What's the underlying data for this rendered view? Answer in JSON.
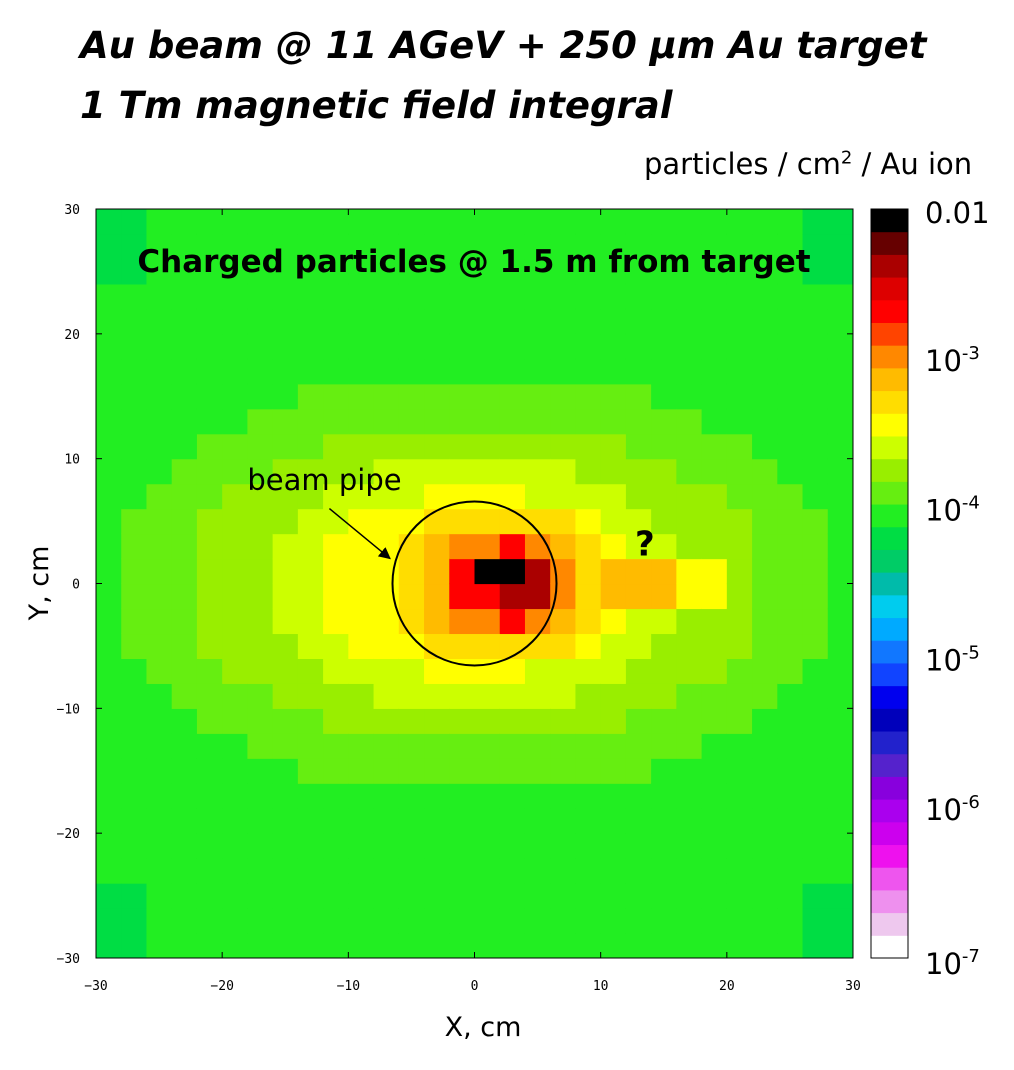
{
  "title_line1": "Au beam @ 11 AGeV + 250 µm Au target",
  "title_line2": "1 Tm magnetic field integral",
  "colorbar_units": {
    "prefix": "particles / cm",
    "power": "2",
    "suffix": " / Au ion"
  },
  "chart_data": {
    "type": "heatmap",
    "title": "Charged particles @ 1.5 m from target",
    "xlabel": "X, cm",
    "ylabel": "Y, cm",
    "xlim": [
      -30,
      30
    ],
    "ylim": [
      -30,
      30
    ],
    "x_ticks": [
      "-30",
      "-20",
      "-10",
      "0",
      "10",
      "20",
      "30"
    ],
    "y_ticks": [
      "30",
      "20",
      "10",
      "0",
      "-10",
      "-20",
      "-30"
    ],
    "colorbar": {
      "scale": "log",
      "range": [
        1e-07,
        0.01
      ],
      "labels": [
        {
          "base": "0.01",
          "exp": "",
          "value": 0.01
        },
        {
          "base": "10",
          "exp": "-3",
          "value": 0.001
        },
        {
          "base": "10",
          "exp": "-4",
          "value": 0.0001
        },
        {
          "base": "10",
          "exp": "-5",
          "value": 1e-05
        },
        {
          "base": "10",
          "exp": "-6",
          "value": 1e-06
        },
        {
          "base": "10",
          "exp": "-7",
          "value": 1e-07
        }
      ],
      "colors": [
        "#ffffff",
        "#eec8ee",
        "#ee90ee",
        "#ee55ee",
        "#ee11ee",
        "#cc00ee",
        "#aa00ee",
        "#8800dd",
        "#5522cc",
        "#2222cc",
        "#0000bb",
        "#0000ee",
        "#1144ff",
        "#1177ff",
        "#00aaff",
        "#00ccee",
        "#00bbaa",
        "#00cc66",
        "#00dd44",
        "#22ee22",
        "#66ee11",
        "#99ee00",
        "#ccff00",
        "#ffff00",
        "#ffdd00",
        "#ffbb00",
        "#ff8800",
        "#ff4400",
        "#ff0000",
        "#dd0000",
        "#aa0000",
        "#660000",
        "#000000"
      ]
    },
    "peak": {
      "x": 1.5,
      "y": 0.5,
      "value": 0.01
    },
    "regions": [
      {
        "name": "outer",
        "center": [
          0,
          0
        ],
        "rx": 60,
        "ry": 28,
        "value": 9e-05
      },
      {
        "name": "green",
        "center": [
          0,
          0
        ],
        "rx": 36,
        "ry": 24,
        "value": 0.0001
      },
      {
        "name": "yellow-green",
        "center": [
          0,
          0
        ],
        "rx": 29,
        "ry": 17,
        "value": 0.00015
      },
      {
        "name": "light-yellow",
        "center": [
          0,
          0
        ],
        "rx": 23,
        "ry": 13,
        "value": 0.0002
      },
      {
        "name": "yellow",
        "center": [
          0,
          0
        ],
        "rx": 17,
        "ry": 10,
        "value": 0.0003
      },
      {
        "name": "gold",
        "center": [
          0,
          0
        ],
        "rx": 13,
        "ry": 7.5,
        "value": 0.0004
      },
      {
        "name": "orange-yellow",
        "center": [
          2,
          0
        ],
        "rx": 9,
        "ry": 6.5,
        "value": 0.0006
      },
      {
        "name": "orange",
        "center": [
          2,
          0
        ],
        "rx": 6.5,
        "ry": 5,
        "value": 0.0008
      },
      {
        "name": "red-orange",
        "center": [
          2.5,
          0
        ],
        "rx": 5,
        "ry": 4.5,
        "value": 0.0012
      },
      {
        "name": "red",
        "center": [
          2.5,
          0
        ],
        "rx": 4,
        "ry": 3.2,
        "value": 0.002
      },
      {
        "name": "dark-red",
        "center": [
          3.5,
          0
        ],
        "rx": 3,
        "ry": 1.6,
        "value": 0.005
      }
    ],
    "side_lobe": {
      "x_range": [
        11,
        19
      ],
      "y_range": [
        -2,
        2
      ],
      "value": 0.0007
    },
    "annotations": [
      {
        "text": "beam pipe",
        "x": -13,
        "y": 8
      },
      {
        "text": "?",
        "x": 13.5,
        "y": 3.2
      }
    ],
    "circle": {
      "center": [
        0,
        0
      ],
      "radius": 6.5
    }
  }
}
